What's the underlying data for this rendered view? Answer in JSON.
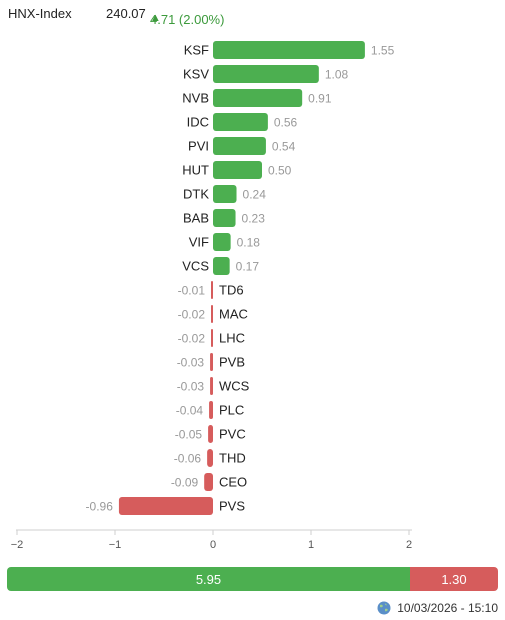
{
  "header": {
    "index_name": "HNX-Index",
    "index_value": "240.07",
    "change_text": "4.71 (2.00%)",
    "change_direction": "up"
  },
  "colors": {
    "positive": "#4caf50",
    "negative": "#d65c5c",
    "value_label": "#999999",
    "header_up": "#3c9a3c"
  },
  "chart_data": {
    "type": "bar",
    "orientation": "horizontal",
    "categories": [
      "KSF",
      "KSV",
      "NVB",
      "IDC",
      "PVI",
      "HUT",
      "DTK",
      "BAB",
      "VIF",
      "VCS",
      "TD6",
      "MAC",
      "LHC",
      "PVB",
      "WCS",
      "PLC",
      "PVC",
      "THD",
      "CEO",
      "PVS"
    ],
    "values": [
      1.55,
      1.08,
      0.91,
      0.56,
      0.54,
      0.5,
      0.24,
      0.23,
      0.18,
      0.17,
      -0.01,
      -0.02,
      -0.02,
      -0.03,
      -0.03,
      -0.04,
      -0.05,
      -0.06,
      -0.09,
      -0.96
    ],
    "value_labels": [
      "1.55",
      "1.08",
      "0.91",
      "0.56",
      "0.54",
      "0.50",
      "0.24",
      "0.23",
      "0.18",
      "0.17",
      "-0.01",
      "-0.02",
      "-0.02",
      "-0.03",
      "-0.03",
      "-0.04",
      "-0.05",
      "-0.06",
      "-0.09",
      "-0.96"
    ],
    "xlim": [
      -2,
      2
    ],
    "x_ticks": [
      -2,
      -1,
      0,
      1,
      2
    ],
    "x_tick_labels": [
      "−2",
      "−1",
      "0",
      "1",
      "2"
    ],
    "grid": false
  },
  "summary": {
    "positive_value": 5.95,
    "negative_value": 1.3,
    "positive_label": "5.95",
    "negative_label": "1.30"
  },
  "footer": {
    "icon": "globe-icon",
    "timestamp": "10/03/2026 - 15:10"
  }
}
